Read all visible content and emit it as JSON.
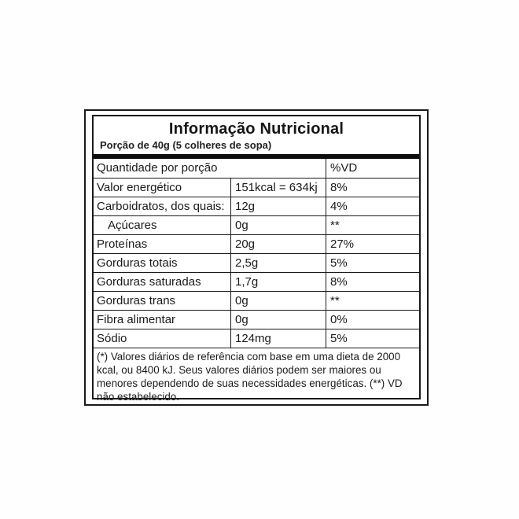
{
  "label": {
    "title": "Informação Nutricional",
    "serving": "Porção de 40g (5 colheres de sopa)",
    "columns": {
      "quantity_header": "Quantidade por porção",
      "dv_header": "%VD"
    },
    "rows": [
      {
        "name": "Valor energético",
        "amount": "151kcal = 634kj",
        "dv": "8%"
      },
      {
        "name": "Carboidratos, dos quais:",
        "amount": "12g",
        "dv": "4%"
      },
      {
        "name": "Açúcares",
        "amount": "0g",
        "dv": "**"
      },
      {
        "name": "Proteínas",
        "amount": "20g",
        "dv": "27%"
      },
      {
        "name": "Gorduras totais",
        "amount": "2,5g",
        "dv": "5%"
      },
      {
        "name": "Gorduras saturadas",
        "amount": "1,7g",
        "dv": "8%"
      },
      {
        "name": "Gorduras trans",
        "amount": "0g",
        "dv": "**"
      },
      {
        "name": "Fibra alimentar",
        "amount": "0g",
        "dv": "0%"
      },
      {
        "name": "Sódio",
        "amount": "124mg",
        "dv": "5%"
      }
    ],
    "footnote": "(*) Valores diários de referência com base em uma dieta de 2000 kcal, ou 8400 kJ. Seus valores diários podem ser maiores ou menores dependendo de suas necessidades energéticas. (**) VD não estabelecido.",
    "colors": {
      "border": "#1a1a1a",
      "bar": "#0d0d0d",
      "text": "#1a1a1a",
      "background": "#ffffff"
    }
  }
}
